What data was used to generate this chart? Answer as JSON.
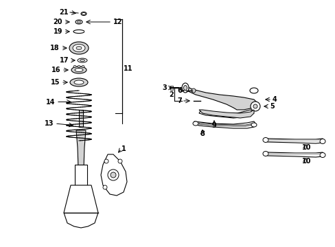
{
  "bg_color": "#ffffff",
  "line_color": "#000000",
  "gray_color": "#888888",
  "fig_width": 4.89,
  "fig_height": 3.6,
  "dpi": 100,
  "parts": {
    "left_section": {
      "label_numbers": [
        21,
        20,
        19,
        18,
        17,
        16,
        15,
        14,
        13,
        11,
        1
      ],
      "bracket_label": "11"
    },
    "right_section": {
      "label_numbers": [
        1,
        2,
        3,
        4,
        5,
        6,
        7,
        8,
        9,
        10
      ]
    }
  }
}
